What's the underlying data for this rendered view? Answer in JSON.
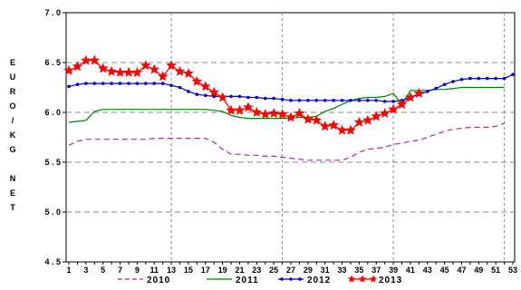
{
  "chart_data": {
    "type": "line",
    "ylabel": "EURO/KG NET",
    "ylim": [
      4.5,
      7.0
    ],
    "yticks": [
      "4 . 5",
      "5 . 0",
      "5 . 5",
      "6 . 0",
      "6 . 5",
      "7 . 0"
    ],
    "ytick_values": [
      4.5,
      5.0,
      5.5,
      6.0,
      6.5,
      7.0
    ],
    "xlim": [
      1,
      53
    ],
    "xticks": [
      1,
      3,
      5,
      7,
      9,
      11,
      13,
      15,
      17,
      19,
      21,
      23,
      25,
      27,
      29,
      31,
      33,
      35,
      37,
      39,
      41,
      43,
      45,
      47,
      49,
      51,
      53
    ],
    "grid": {
      "horizontal": "dashed",
      "vertical_at": [
        13,
        26,
        39,
        52
      ]
    },
    "legend_position": "bottom",
    "series": [
      {
        "name": "2010",
        "color": "#993399",
        "style": "dashed",
        "marker": "none",
        "x": [
          1,
          2,
          3,
          4,
          5,
          6,
          7,
          8,
          9,
          10,
          11,
          12,
          13,
          14,
          15,
          16,
          17,
          18,
          19,
          20,
          21,
          22,
          23,
          24,
          25,
          26,
          27,
          28,
          29,
          30,
          31,
          32,
          33,
          34,
          35,
          36,
          37,
          38,
          39,
          40,
          41,
          42,
          43,
          44,
          45,
          46,
          47,
          48,
          49,
          50,
          51,
          52
        ],
        "values": [
          5.67,
          5.71,
          5.73,
          5.73,
          5.73,
          5.73,
          5.73,
          5.73,
          5.73,
          5.73,
          5.74,
          5.74,
          5.74,
          5.74,
          5.74,
          5.74,
          5.74,
          5.7,
          5.63,
          5.58,
          5.58,
          5.57,
          5.57,
          5.56,
          5.56,
          5.55,
          5.54,
          5.53,
          5.52,
          5.52,
          5.52,
          5.52,
          5.52,
          5.55,
          5.6,
          5.63,
          5.64,
          5.65,
          5.68,
          5.69,
          5.71,
          5.72,
          5.75,
          5.78,
          5.81,
          5.83,
          5.84,
          5.85,
          5.85,
          5.85,
          5.86,
          5.89
        ]
      },
      {
        "name": "2011",
        "color": "#008000",
        "style": "solid",
        "marker": "none",
        "x": [
          1,
          2,
          3,
          4,
          5,
          6,
          7,
          8,
          9,
          10,
          11,
          12,
          13,
          14,
          15,
          16,
          17,
          18,
          19,
          20,
          21,
          22,
          23,
          24,
          25,
          26,
          27,
          28,
          29,
          30,
          31,
          32,
          33,
          34,
          35,
          36,
          37,
          38,
          39,
          40,
          41,
          42,
          43,
          44,
          45,
          46,
          47,
          48,
          49,
          50,
          51,
          52
        ],
        "values": [
          5.9,
          5.91,
          5.92,
          6.01,
          6.03,
          6.03,
          6.03,
          6.03,
          6.03,
          6.03,
          6.03,
          6.03,
          6.03,
          6.03,
          6.03,
          6.03,
          6.03,
          6.02,
          6.01,
          5.97,
          5.95,
          5.94,
          5.94,
          5.94,
          5.94,
          5.94,
          5.94,
          5.95,
          5.95,
          5.96,
          6.01,
          6.04,
          6.08,
          6.12,
          6.14,
          6.15,
          6.15,
          6.16,
          6.19,
          6.08,
          6.22,
          6.22,
          6.22,
          6.23,
          6.23,
          6.24,
          6.25,
          6.25,
          6.25,
          6.25,
          6.25,
          6.25
        ]
      },
      {
        "name": "2012",
        "color": "#0000cc",
        "style": "solid",
        "marker": "dot",
        "x": [
          1,
          2,
          3,
          4,
          5,
          6,
          7,
          8,
          9,
          10,
          11,
          12,
          13,
          14,
          15,
          16,
          17,
          18,
          19,
          20,
          21,
          22,
          23,
          24,
          25,
          26,
          27,
          28,
          29,
          30,
          31,
          32,
          33,
          34,
          35,
          36,
          37,
          38,
          39,
          40,
          41,
          42,
          43,
          44,
          45,
          46,
          47,
          48,
          49,
          50,
          51,
          52,
          53
        ],
        "values": [
          6.26,
          6.28,
          6.29,
          6.29,
          6.29,
          6.29,
          6.29,
          6.29,
          6.29,
          6.29,
          6.29,
          6.29,
          6.27,
          6.25,
          6.21,
          6.18,
          6.17,
          6.16,
          6.16,
          6.16,
          6.16,
          6.15,
          6.15,
          6.14,
          6.14,
          6.13,
          6.12,
          6.12,
          6.12,
          6.12,
          6.12,
          6.12,
          6.12,
          6.12,
          6.12,
          6.12,
          6.12,
          6.11,
          6.11,
          6.12,
          6.15,
          6.18,
          6.21,
          6.24,
          6.28,
          6.31,
          6.33,
          6.34,
          6.34,
          6.34,
          6.34,
          6.34,
          6.38
        ]
      },
      {
        "name": "2013",
        "color": "#ff0000",
        "style": "solid",
        "marker": "star",
        "x": [
          1,
          2,
          3,
          4,
          5,
          6,
          7,
          8,
          9,
          10,
          11,
          12,
          13,
          14,
          15,
          16,
          17,
          18,
          19,
          20,
          21,
          22,
          23,
          24,
          25,
          26,
          27,
          28,
          29,
          30,
          31,
          32,
          33,
          34,
          35,
          36,
          37,
          38,
          39,
          40,
          41,
          42
        ],
        "values": [
          6.42,
          6.46,
          6.52,
          6.52,
          6.44,
          6.41,
          6.4,
          6.4,
          6.4,
          6.47,
          6.43,
          6.36,
          6.47,
          6.41,
          6.39,
          6.31,
          6.26,
          6.2,
          6.15,
          6.02,
          6.02,
          6.05,
          6.0,
          5.98,
          5.99,
          5.98,
          5.95,
          5.99,
          5.93,
          5.92,
          5.86,
          5.87,
          5.82,
          5.82,
          5.9,
          5.92,
          5.96,
          5.99,
          6.03,
          6.08,
          6.15,
          6.19
        ]
      }
    ]
  }
}
